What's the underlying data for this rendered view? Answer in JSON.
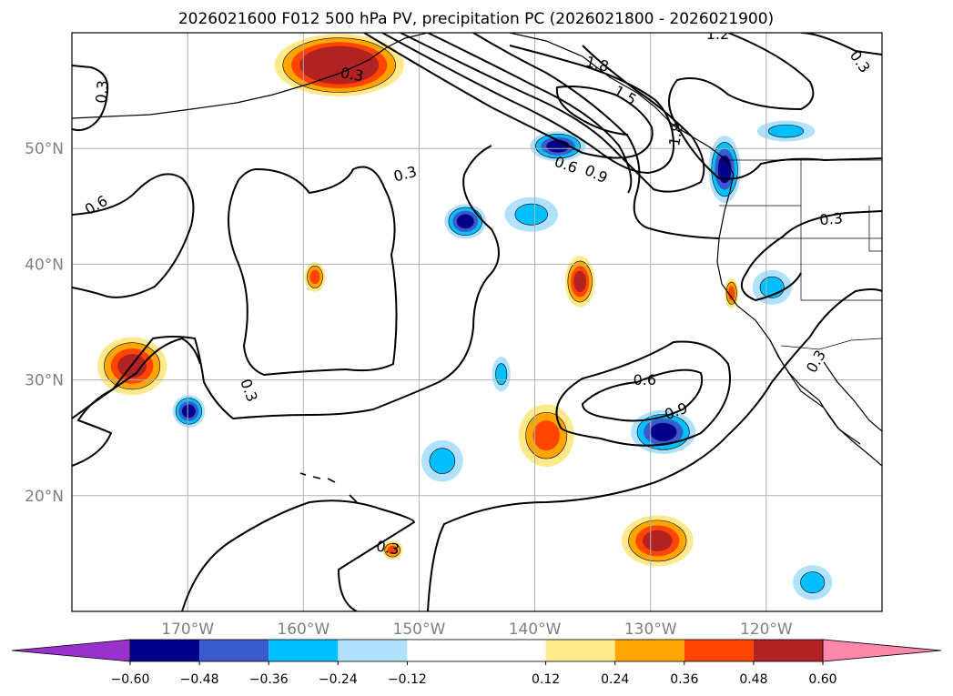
{
  "title": "2026021600 F012 500 hPa PV, precipitation PC (2026021800 - 2026021900)",
  "colors": {
    "cb": [
      "#9932cc",
      "#00008b",
      "#3a5bcc",
      "#00bfff",
      "#b0e2ff",
      "#ffffff",
      "#ffe98a",
      "#ffa500",
      "#ff4500",
      "#b22222",
      "#ff88aa"
    ],
    "coast": "#000000",
    "grid": "#b0b0b0",
    "contour": "#000000"
  },
  "map": {
    "lon_min": -180,
    "lon_max": -110,
    "lat_min": 10,
    "lat_max": 60,
    "lon_ticks": [
      -170,
      -160,
      -150,
      -140,
      -130,
      -120
    ],
    "lat_ticks": [
      20,
      30,
      40,
      50
    ],
    "lon_tick_labels": [
      "170°W",
      "160°W",
      "150°W",
      "140°W",
      "130°W",
      "120°W"
    ],
    "lat_tick_labels": [
      "20°N",
      "30°N",
      "40°N",
      "50°N"
    ]
  },
  "colorbar": {
    "levels": [
      -0.6,
      -0.48,
      -0.36,
      -0.24,
      -0.12,
      0.12,
      0.24,
      0.36,
      0.48,
      0.6
    ],
    "tick_labels": [
      "−0.60",
      "−0.48",
      "−0.36",
      "−0.24",
      "−0.12",
      "0.12",
      "0.24",
      "0.36",
      "0.48",
      "0.60"
    ],
    "extend": "both"
  },
  "contour_labels": [
    {
      "text": "0.3",
      "lon": -155.8,
      "lat": 56.4,
      "rot": 10
    },
    {
      "text": "0.3",
      "lon": -177.4,
      "lat": 54.9,
      "rot": -85
    },
    {
      "text": "1.8",
      "lon": -134.6,
      "lat": 57.3,
      "rot": 15
    },
    {
      "text": "1.5",
      "lon": -132.2,
      "lat": 54.6,
      "rot": 30
    },
    {
      "text": "1.2",
      "lon": -124.2,
      "lat": 59.9,
      "rot": 0
    },
    {
      "text": "0.3",
      "lon": -111.9,
      "lat": 57.5,
      "rot": 55
    },
    {
      "text": "1.8",
      "lon": -127.8,
      "lat": 51.2,
      "rot": -80
    },
    {
      "text": "0.6",
      "lon": -137.3,
      "lat": 48.6,
      "rot": 20
    },
    {
      "text": "0.9",
      "lon": -134.7,
      "lat": 47.8,
      "rot": 25
    },
    {
      "text": "0.3",
      "lon": -151.2,
      "lat": 47.8,
      "rot": -15
    },
    {
      "text": "0.6",
      "lon": -177.9,
      "lat": 45.1,
      "rot": -30
    },
    {
      "text": "0.3",
      "lon": -114.4,
      "lat": 43.9,
      "rot": -5
    },
    {
      "text": "0.3",
      "lon": -164.7,
      "lat": 29.1,
      "rot": 70
    },
    {
      "text": "0.6",
      "lon": -130.5,
      "lat": 30.0,
      "rot": 0
    },
    {
      "text": "0.9",
      "lon": -127.8,
      "lat": 27.3,
      "rot": -20
    },
    {
      "text": "0.3",
      "lon": -115.7,
      "lat": 31.6,
      "rot": -60
    },
    {
      "text": "0.3",
      "lon": -152.7,
      "lat": 15.5,
      "rot": 10
    }
  ],
  "precip_blobs": [
    {
      "sign": "pos",
      "lon": -156.9,
      "lat": 57.2,
      "rx": 5.6,
      "ry": 2.7,
      "level": 5,
      "name": "gulf-alaska-max"
    },
    {
      "sign": "pos",
      "lon": -174.8,
      "lat": 31.2,
      "rx": 3.0,
      "ry": 2.5,
      "level": 3,
      "name": "pos-west-1"
    },
    {
      "sign": "pos",
      "lon": -159.0,
      "lat": 38.9,
      "rx": 0.9,
      "ry": 1.3,
      "level": 2,
      "name": "pos-mid-1"
    },
    {
      "sign": "pos",
      "lon": -136.1,
      "lat": 38.5,
      "rx": 1.3,
      "ry": 2.2,
      "level": 3,
      "name": "pos-mid-2"
    },
    {
      "sign": "pos",
      "lon": -139.0,
      "lat": 25.2,
      "rx": 2.4,
      "ry": 2.7,
      "level": 2,
      "name": "pos-subtrop"
    },
    {
      "sign": "pos",
      "lon": -129.4,
      "lat": 16.1,
      "rx": 3.1,
      "ry": 2.2,
      "level": 3,
      "name": "pos-south"
    },
    {
      "sign": "neg",
      "lon": -123.6,
      "lat": 48.2,
      "rx": 1.4,
      "ry": 2.9,
      "level": 3,
      "name": "neg-pnw"
    },
    {
      "sign": "neg",
      "lon": -138.0,
      "lat": 50.2,
      "rx": 2.4,
      "ry": 1.3,
      "level": 3,
      "name": "neg-bc-offshore"
    },
    {
      "sign": "neg",
      "lon": -146.0,
      "lat": 43.7,
      "rx": 1.8,
      "ry": 1.5,
      "level": 3,
      "name": "neg-mid-1"
    },
    {
      "sign": "neg",
      "lon": -140.3,
      "lat": 44.3,
      "rx": 2.3,
      "ry": 1.5,
      "level": 1,
      "name": "neg-mid-2"
    },
    {
      "sign": "neg",
      "lon": -169.9,
      "lat": 27.3,
      "rx": 1.4,
      "ry": 1.4,
      "level": 3,
      "name": "neg-west"
    },
    {
      "sign": "neg",
      "lon": -128.9,
      "lat": 25.5,
      "rx": 2.8,
      "ry": 1.9,
      "level": 3,
      "name": "neg-subtrop-east"
    },
    {
      "sign": "neg",
      "lon": -148.0,
      "lat": 23.0,
      "rx": 1.8,
      "ry": 1.8,
      "level": 1,
      "name": "neg-subtrop-west"
    },
    {
      "sign": "neg",
      "lon": -119.5,
      "lat": 38.0,
      "rx": 1.7,
      "ry": 1.5,
      "level": 1,
      "name": "neg-california"
    },
    {
      "sign": "neg",
      "lon": -118.3,
      "lat": 51.5,
      "rx": 2.5,
      "ry": 0.9,
      "level": 1,
      "name": "neg-inland"
    },
    {
      "sign": "neg",
      "lon": -116.0,
      "lat": 12.5,
      "rx": 1.7,
      "ry": 1.5,
      "level": 1,
      "name": "neg-southeast"
    },
    {
      "sign": "neg",
      "lon": -142.9,
      "lat": 30.5,
      "rx": 0.8,
      "ry": 1.5,
      "level": 1,
      "name": "neg-small"
    },
    {
      "sign": "pos",
      "lon": -123.0,
      "lat": 37.5,
      "rx": 0.6,
      "ry": 1.3,
      "level": 2,
      "name": "pos-coast"
    },
    {
      "sign": "pos",
      "lon": -152.3,
      "lat": 15.3,
      "rx": 0.9,
      "ry": 0.8,
      "level": 2,
      "name": "pos-small-south"
    }
  ]
}
